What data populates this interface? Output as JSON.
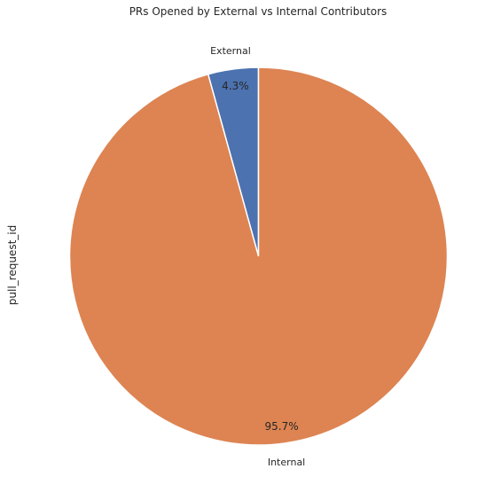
{
  "chart_data": {
    "type": "pie",
    "title": "PRs Opened by External vs Internal Contributors",
    "ylabel": "pull_request_id",
    "start_angle": "top, counterclockwise",
    "slices": [
      {
        "label": "External",
        "value": 4.3,
        "pct_label": "4.3%",
        "color": "#4c72b0"
      },
      {
        "label": "Internal",
        "value": 95.7,
        "pct_label": "95.7%",
        "color": "#dd8452"
      }
    ]
  }
}
